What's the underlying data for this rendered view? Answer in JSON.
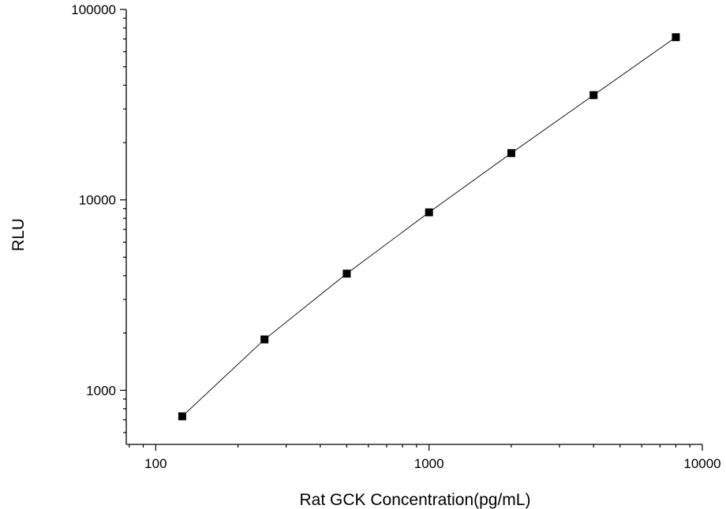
{
  "chart_data": {
    "type": "scatter",
    "title": "",
    "xlabel": "Rat GCK Concentration(pg/mL)",
    "ylabel": "RLU",
    "x_scale": "log",
    "y_scale": "log",
    "xlim": [
      78,
      10000
    ],
    "ylim": [
      520,
      100000
    ],
    "x_tick_labels": [
      "100",
      "1000",
      "10000"
    ],
    "y_tick_labels": [
      "1000",
      "10000",
      "100000"
    ],
    "grid": false,
    "legend": "none",
    "series": [
      {
        "x": [
          125,
          250,
          500,
          1000,
          2000,
          4000,
          8000
        ],
        "y": [
          730,
          1850,
          4100,
          8600,
          17600,
          35500,
          71500
        ],
        "marker": "square",
        "connected": true
      }
    ],
    "colors": {
      "marker": "#000000",
      "line": "#000000",
      "axis": "#000000"
    }
  }
}
